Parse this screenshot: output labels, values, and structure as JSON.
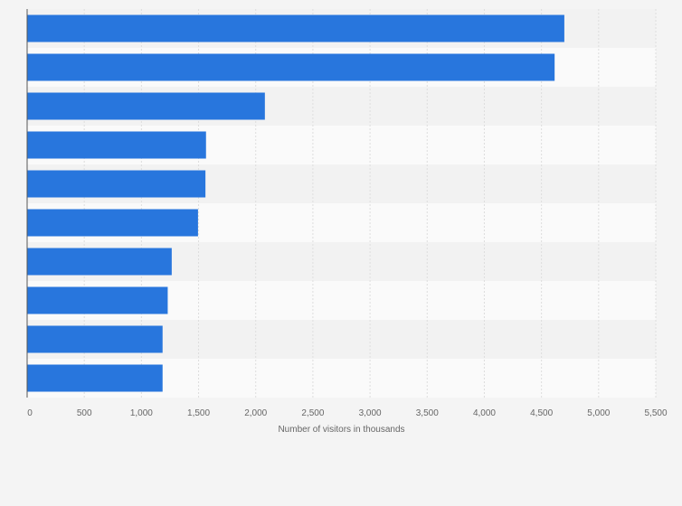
{
  "chart_data": {
    "type": "bar",
    "orientation": "horizontal",
    "categories": [
      "",
      "",
      "",
      "",
      "",
      "",
      "",
      "",
      "",
      ""
    ],
    "values": [
      4700,
      4615,
      2080,
      1565,
      1560,
      1495,
      1265,
      1230,
      1185,
      1185
    ],
    "title": "",
    "xlabel": "Number of visitors in thousands",
    "ylabel": "",
    "xlim": [
      0,
      5500
    ],
    "xticks": [
      0,
      500,
      1000,
      1500,
      2000,
      2500,
      3000,
      3500,
      4000,
      4500,
      5000,
      5500
    ],
    "xtick_labels": [
      "0",
      "500",
      "1,000",
      "1,500",
      "2,000",
      "2,500",
      "3,000",
      "3,500",
      "4,000",
      "4,500",
      "5,000",
      "5,500"
    ],
    "grid": true,
    "legend": "none",
    "colors": {
      "bar": "#2876dd",
      "band_light": "#fafafa",
      "band_dark": "#f2f2f2",
      "grid": "#dddddd",
      "axis": "#555555"
    }
  }
}
